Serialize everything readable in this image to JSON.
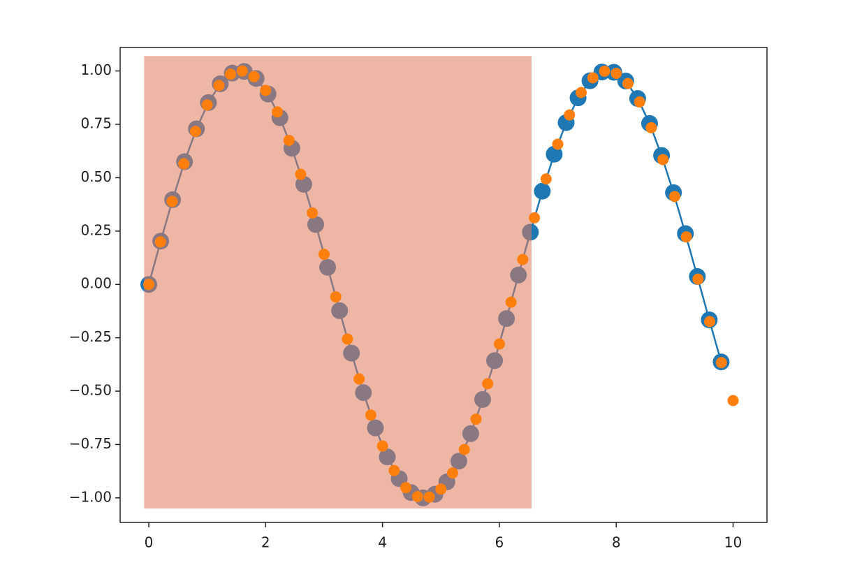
{
  "chart_data": {
    "type": "line",
    "series": [
      {
        "kind": "line-markers",
        "color": "#1f77b4",
        "x": [
          0,
          0.204,
          0.408,
          0.612,
          0.816,
          1.02,
          1.224,
          1.429,
          1.633,
          1.837,
          2.041,
          2.245,
          2.449,
          2.653,
          2.857,
          3.061,
          3.265,
          3.469,
          3.673,
          3.878,
          4.082,
          4.286,
          4.49,
          4.694,
          4.898,
          5.102,
          5.306,
          5.51,
          5.714,
          5.918,
          6.122,
          6.327,
          6.531,
          6.735,
          6.939,
          7.143,
          7.347,
          7.551,
          7.755,
          7.959,
          8.163,
          8.367,
          8.571,
          8.776,
          8.98,
          9.184,
          9.388,
          9.592,
          9.796
        ],
        "values": [
          0,
          0.203,
          0.397,
          0.575,
          0.729,
          0.852,
          0.94,
          0.99,
          0.998,
          0.965,
          0.892,
          0.781,
          0.638,
          0.469,
          0.281,
          0.08,
          -0.123,
          -0.322,
          -0.507,
          -0.672,
          -0.808,
          -0.91,
          -0.975,
          -1.0,
          -0.983,
          -0.925,
          -0.828,
          -0.699,
          -0.539,
          -0.357,
          -0.16,
          0.044,
          0.245,
          0.437,
          0.61,
          0.758,
          0.874,
          0.954,
          0.995,
          0.994,
          0.953,
          0.871,
          0.754,
          0.604,
          0.43,
          0.238,
          0.037,
          -0.166,
          -0.363
        ]
      },
      {
        "kind": "markers",
        "color": "#ff7f0e",
        "x": [
          0,
          0.2,
          0.4,
          0.6,
          0.8,
          1.0,
          1.2,
          1.4,
          1.6,
          1.8,
          2.0,
          2.2,
          2.4,
          2.6,
          2.8,
          3.0,
          3.2,
          3.4,
          3.6,
          3.8,
          4.0,
          4.2,
          4.4,
          4.6,
          4.8,
          5.0,
          5.2,
          5.4,
          5.6,
          5.8,
          6.0,
          6.2,
          6.4,
          6.6,
          6.8,
          7.0,
          7.2,
          7.4,
          7.6,
          7.8,
          8.0,
          8.2,
          8.4,
          8.6,
          8.8,
          9.0,
          9.2,
          9.4,
          9.6,
          9.8,
          10.0
        ],
        "values": [
          0,
          0.199,
          0.389,
          0.565,
          0.717,
          0.841,
          0.932,
          0.985,
          1.0,
          0.974,
          0.909,
          0.808,
          0.675,
          0.516,
          0.335,
          0.141,
          -0.058,
          -0.256,
          -0.443,
          -0.612,
          -0.757,
          -0.872,
          -0.952,
          -0.994,
          -0.996,
          -0.959,
          -0.883,
          -0.773,
          -0.631,
          -0.465,
          -0.279,
          -0.083,
          0.117,
          0.312,
          0.494,
          0.657,
          0.794,
          0.899,
          0.968,
          0.999,
          0.989,
          0.941,
          0.855,
          0.734,
          0.585,
          0.412,
          0.223,
          0.025,
          -0.174,
          -0.366,
          -0.544
        ]
      }
    ],
    "span": {
      "x": [
        -0.08,
        6.55
      ],
      "y": [
        -1.05,
        1.07
      ],
      "color": "#e07a5a"
    },
    "xlim": [
      -0.49,
      10.58
    ],
    "ylim": [
      -1.115,
      1.11
    ],
    "xticks": [
      0,
      2,
      4,
      6,
      8,
      10
    ],
    "yticks": [
      {
        "value": -1,
        "label": "−1.00"
      },
      {
        "value": -0.75,
        "label": "−0.75"
      },
      {
        "value": -0.5,
        "label": "−0.50"
      },
      {
        "value": -0.25,
        "label": "−0.25"
      },
      {
        "value": 0,
        "label": "0.00"
      },
      {
        "value": 0.25,
        "label": "0.25"
      },
      {
        "value": 0.5,
        "label": "0.50"
      },
      {
        "value": 0.75,
        "label": "0.75"
      },
      {
        "value": 1,
        "label": "1.00"
      }
    ]
  }
}
